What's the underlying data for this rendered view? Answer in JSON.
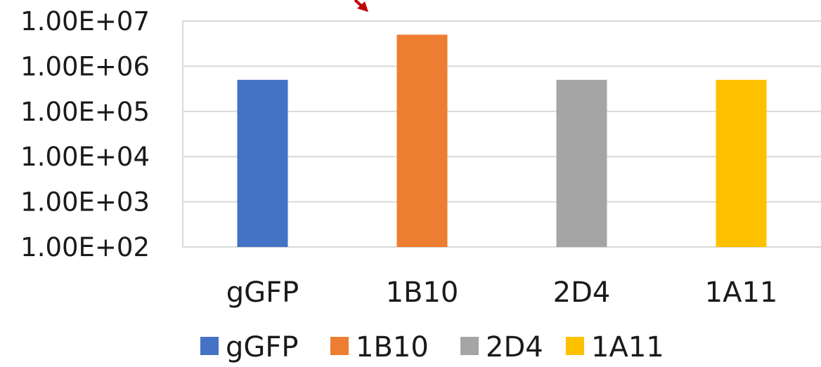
{
  "chart_data": {
    "type": "bar",
    "categories": [
      "gGFP",
      "1B10",
      "2D4",
      "1A11"
    ],
    "values": [
      500000,
      5000000,
      500000,
      500000
    ],
    "colors": [
      "#4472C4",
      "#ED7D31",
      "#A5A5A5",
      "#FFC000"
    ],
    "yscale": "log",
    "ylim": [
      100,
      10000000
    ],
    "yticks": [
      100,
      1000,
      10000,
      100000,
      1000000,
      10000000
    ],
    "ytick_labels": [
      "1.00E+02",
      "1.00E+03",
      "1.00E+04",
      "1.00E+05",
      "1.00E+06",
      "1.00E+07"
    ],
    "grid": true,
    "legend": {
      "placement": "bottom",
      "entries": [
        "gGFP",
        "1B10",
        "2D4",
        "1A11"
      ]
    },
    "annotation_arrow_color": "#C00000",
    "title": "",
    "xlabel": "",
    "ylabel": ""
  }
}
